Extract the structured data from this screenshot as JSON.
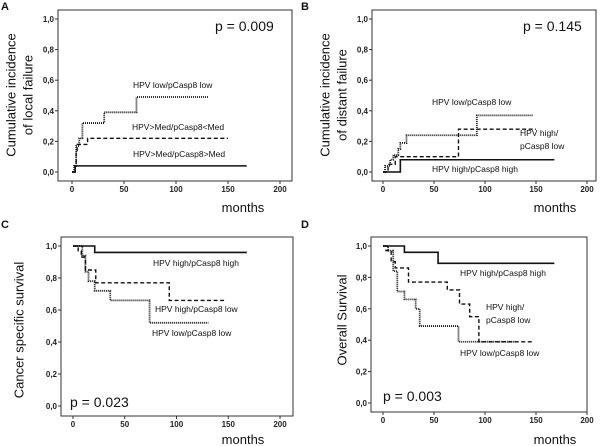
{
  "chart_data": [
    {
      "panel": "A",
      "type": "line",
      "step": true,
      "ylabel": [
        "Cumulative incidence",
        "of local failure"
      ],
      "xlabel": "months",
      "annotation": "p = 0.009",
      "xlim": [
        0,
        200
      ],
      "ylim": [
        0,
        1
      ],
      "xticks": [
        "0",
        "50",
        "100",
        "150",
        "200"
      ],
      "yticks": [
        "0,0",
        "0,2",
        "0,4",
        "0,6",
        "0,8",
        "1,0"
      ],
      "series": [
        {
          "name": "HPV low/pCasp8 low",
          "style": "dotted",
          "points": [
            [
              0,
              0
            ],
            [
              2,
              0.04
            ],
            [
              4,
              0.17
            ],
            [
              7,
              0.22
            ],
            [
              10,
              0.32
            ],
            [
              31,
              0.39
            ],
            [
              62,
              0.49
            ]
          ],
          "end": 131
        },
        {
          "name": "HPV>Med/pCasp8<Med",
          "style": "dashed",
          "points": [
            [
              0,
              0
            ],
            [
              3,
              0.04
            ],
            [
              4,
              0.14
            ],
            [
              5,
              0.18
            ],
            [
              15,
              0.22
            ]
          ],
          "end": 150
        },
        {
          "name": "HPV>Med/pCasp8>Med",
          "style": "solid",
          "points": [
            [
              0,
              0
            ],
            [
              3,
              0.04
            ]
          ],
          "end": 168
        }
      ]
    },
    {
      "panel": "B",
      "type": "line",
      "step": true,
      "ylabel": [
        "Cumulative incidence",
        "of distant failure"
      ],
      "xlabel": "months",
      "annotation": "p = 0.145",
      "xlim": [
        0,
        200
      ],
      "ylim": [
        0,
        1
      ],
      "xticks": [
        "0",
        "50",
        "100",
        "150",
        "200"
      ],
      "yticks": [
        "0,0",
        "0,2",
        "0,4",
        "0,6",
        "0,8",
        "1,0"
      ],
      "series": [
        {
          "name": "HPV low/pCasp8 low",
          "style": "dotted",
          "points": [
            [
              0,
              0
            ],
            [
              2,
              0.04
            ],
            [
              7,
              0.08
            ],
            [
              10,
              0.11
            ],
            [
              15,
              0.15
            ],
            [
              17,
              0.19
            ],
            [
              23,
              0.24
            ],
            [
              92,
              0.37
            ]
          ],
          "end": 147
        },
        {
          "name": "HPV high/ pCasp8 low",
          "name_lines": [
            "HPV high/",
            "pCasp8 low"
          ],
          "style": "dashed",
          "points": [
            [
              0,
              0
            ],
            [
              5,
              0.05
            ],
            [
              12,
              0.1
            ],
            [
              74,
              0.28
            ]
          ],
          "end": 150
        },
        {
          "name": "HPV high/pCasp8 high",
          "style": "solid",
          "points": [
            [
              0,
              0
            ],
            [
              17,
              0.08
            ]
          ],
          "end": 168
        }
      ]
    },
    {
      "panel": "C",
      "type": "line",
      "step": true,
      "ylabel": [
        "Cancer specific survival"
      ],
      "xlabel": "months",
      "annotation": "p = 0.023",
      "xlim": [
        0,
        200
      ],
      "ylim": [
        0,
        1
      ],
      "xticks": [
        "0",
        "50",
        "100",
        "150",
        "200"
      ],
      "yticks": [
        "0,0",
        "0,2",
        "0,4",
        "0,6",
        "0,8",
        "1,0"
      ],
      "series": [
        {
          "name": "HPV high/pCasp8 high",
          "style": "solid",
          "points": [
            [
              0,
              1
            ],
            [
              21,
              0.96
            ]
          ],
          "end": 168
        },
        {
          "name": "HPV high/pCasp8 low",
          "style": "dashed",
          "points": [
            [
              0,
              1
            ],
            [
              5,
              0.97
            ],
            [
              8,
              0.93
            ],
            [
              12,
              0.85
            ],
            [
              22,
              0.77
            ],
            [
              93,
              0.66
            ]
          ],
          "end": 148
        },
        {
          "name": "HPV low/pCasp8 low",
          "style": "dotted",
          "points": [
            [
              0,
              1
            ],
            [
              9,
              0.94
            ],
            [
              12,
              0.84
            ],
            [
              15,
              0.78
            ],
            [
              21,
              0.72
            ],
            [
              36,
              0.66
            ],
            [
              74,
              0.52
            ]
          ],
          "end": 131
        }
      ]
    },
    {
      "panel": "D",
      "type": "line",
      "step": true,
      "ylabel": [
        "Overall Survival"
      ],
      "xlabel": "months",
      "annotation": "p = 0.003",
      "xlim": [
        0,
        200
      ],
      "ylim": [
        0,
        1
      ],
      "xticks": [
        "0",
        "50",
        "100",
        "150",
        "200"
      ],
      "yticks": [
        "0,0",
        "0,2",
        "0,4",
        "0,6",
        "0,8",
        "1,0"
      ],
      "series": [
        {
          "name": "HPV high/pCasp8 high",
          "style": "solid",
          "points": [
            [
              0,
              1
            ],
            [
              21,
              0.96
            ],
            [
              54,
              0.89
            ]
          ],
          "end": 168
        },
        {
          "name": "HPV high/ pCasp8 low",
          "name_lines": [
            "HPV high/",
            "pCasp8 low"
          ],
          "style": "dashed",
          "points": [
            [
              0,
              1
            ],
            [
              3,
              0.97
            ],
            [
              8,
              0.9
            ],
            [
              12,
              0.86
            ],
            [
              25,
              0.77
            ],
            [
              63,
              0.72
            ],
            [
              75,
              0.63
            ],
            [
              85,
              0.55
            ],
            [
              94,
              0.39
            ]
          ],
          "end": 148
        },
        {
          "name": "HPV low/pCasp8 low",
          "style": "dotted",
          "points": [
            [
              0,
              1
            ],
            [
              5,
              0.97
            ],
            [
              10,
              0.84
            ],
            [
              14,
              0.71
            ],
            [
              21,
              0.66
            ],
            [
              32,
              0.6
            ],
            [
              36,
              0.49
            ],
            [
              74,
              0.39
            ]
          ],
          "end": 130
        }
      ]
    }
  ]
}
